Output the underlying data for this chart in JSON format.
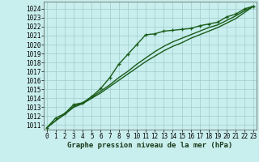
{
  "title": "Graphe pression niveau de la mer (hPa)",
  "bg_color": "#c8eeed",
  "plot_bg_color": "#c8eeed",
  "grid_color": "#a0cccc",
  "line_color": "#1a5c1a",
  "ylim": [
    1010.5,
    1024.8
  ],
  "xlim": [
    -0.3,
    23.3
  ],
  "yticks": [
    1011,
    1012,
    1013,
    1014,
    1015,
    1016,
    1017,
    1018,
    1019,
    1020,
    1021,
    1022,
    1023,
    1024
  ],
  "xticks": [
    0,
    1,
    2,
    3,
    4,
    5,
    6,
    7,
    8,
    9,
    10,
    11,
    12,
    13,
    14,
    15,
    16,
    17,
    18,
    19,
    20,
    21,
    22,
    23
  ],
  "series": [
    [
      1010.7,
      1011.8,
      1012.3,
      1013.3,
      1013.5,
      1014.2,
      1015.1,
      1016.3,
      1017.8,
      1018.9,
      1020.0,
      1021.1,
      1021.2,
      1021.5,
      1021.6,
      1021.7,
      1021.8,
      1022.1,
      1022.3,
      1022.5,
      1023.1,
      1023.4,
      1024.0,
      1024.3
    ],
    [
      1010.7,
      1011.5,
      1012.3,
      1013.1,
      1013.5,
      1014.1,
      1014.8,
      1015.5,
      1016.3,
      1017.0,
      1017.8,
      1018.5,
      1019.2,
      1019.8,
      1020.3,
      1020.7,
      1021.1,
      1021.5,
      1021.9,
      1022.2,
      1022.7,
      1023.2,
      1023.8,
      1024.3
    ],
    [
      1010.7,
      1011.5,
      1012.2,
      1013.0,
      1013.4,
      1014.0,
      1014.6,
      1015.3,
      1016.0,
      1016.7,
      1017.4,
      1018.1,
      1018.7,
      1019.3,
      1019.8,
      1020.2,
      1020.7,
      1021.1,
      1021.5,
      1021.9,
      1022.4,
      1022.9,
      1023.6,
      1024.3
    ]
  ],
  "has_markers": [
    true,
    false,
    false
  ],
  "linewidths": [
    1.0,
    1.0,
    1.0
  ],
  "tick_fontsize": 5.5,
  "title_fontsize": 6.5
}
